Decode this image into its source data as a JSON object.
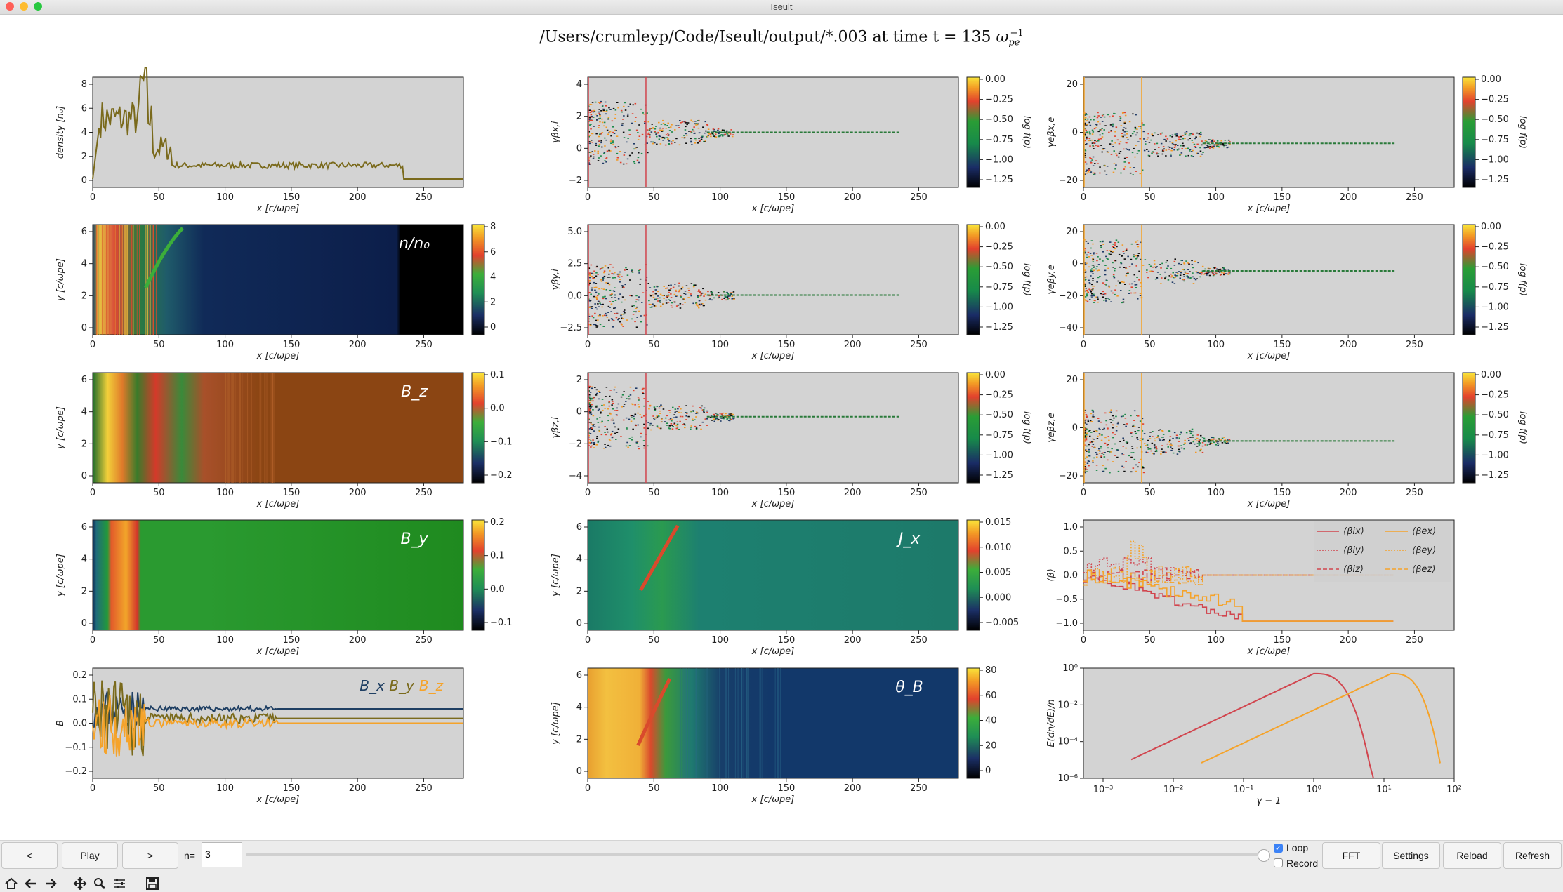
{
  "window": {
    "title": "Iseult"
  },
  "figure_title": {
    "path": "/Users/crumleyp/Code/Iseult/output/*.003 at time t = 135 ",
    "omega": "ω",
    "omega_sub": "pe",
    "omega_sup": "−1"
  },
  "colors": {
    "panel_bg": "#d3d3d3",
    "density_line": "#7a6a1c",
    "ion": "#d1454e",
    "electron": "#f5a32a",
    "bx": "#1f3f63",
    "by": "#7a6a1c",
    "bz": "#f5a32a",
    "brown": "#8b4513",
    "green": "#1f8a1f"
  },
  "axes": {
    "x_label": "x [c/ωpe]",
    "y_label": "y [c/ωpe]",
    "x_ticks": [
      "0",
      "50",
      "100",
      "150",
      "200",
      "250"
    ],
    "y_ticks_2d": [
      "0",
      "2",
      "4",
      "6"
    ]
  },
  "panels": {
    "density": {
      "ylabel": "density [n₀]",
      "yticks": [
        "0",
        "2",
        "4",
        "6",
        "8"
      ]
    },
    "n_map": {
      "label": "n/n₀",
      "cticks": [
        "8",
        "6",
        "4",
        "2",
        "0"
      ]
    },
    "bz_map": {
      "label": "B_z",
      "cticks": [
        "0.1",
        "0.0",
        "−0.1",
        "−0.2"
      ]
    },
    "by_map": {
      "label": "B_y",
      "cticks": [
        "0.2",
        "0.1",
        "0.0",
        "−0.1"
      ]
    },
    "b_lines": {
      "ylabel": "B",
      "yticks": [
        "0.2",
        "0.1",
        "0.0",
        "−0.1",
        "−0.2"
      ],
      "legend": [
        "B_x",
        "B_y",
        "B_z"
      ]
    },
    "px_ion": {
      "ylabel": "γβx,i",
      "yticks": [
        "4",
        "2",
        "0",
        "−2"
      ]
    },
    "py_ion": {
      "ylabel": "γβy,i",
      "yticks": [
        "5.0",
        "2.5",
        "0.0",
        "−2.5"
      ]
    },
    "pz_ion": {
      "ylabel": "γβz,i",
      "yticks": [
        "2",
        "0",
        "−2",
        "−4"
      ]
    },
    "jx_map": {
      "label": "J_x",
      "cticks": [
        "0.015",
        "0.010",
        "0.005",
        "0.000",
        "−0.005"
      ]
    },
    "theta_map": {
      "label": "θ_B",
      "cticks": [
        "80",
        "60",
        "40",
        "20",
        "0"
      ]
    },
    "px_e": {
      "ylabel": "γeβx,e",
      "yticks": [
        "20",
        "0",
        "−20"
      ]
    },
    "py_e": {
      "ylabel": "γeβy,e",
      "yticks": [
        "20",
        "0",
        "−20",
        "−40"
      ]
    },
    "pz_e": {
      "ylabel": "γeβz,e",
      "yticks": [
        "20",
        "0",
        "−20"
      ]
    },
    "beta": {
      "ylabel": "⟨β⟩",
      "yticks": [
        "1.0",
        "0.5",
        "0.0",
        "−0.5",
        "−1.0"
      ],
      "legend": [
        "⟨βix⟩",
        "⟨βiy⟩",
        "⟨βiz⟩",
        "⟨βex⟩",
        "⟨βey⟩",
        "⟨βez⟩"
      ]
    },
    "spectrum": {
      "ylabel": "E(dn/dE)/n",
      "xlabel": "γ − 1",
      "yticks": [
        "10⁰",
        "10⁻²",
        "10⁻⁴",
        "10⁻⁶"
      ],
      "xticks": [
        "10⁻³",
        "10⁻²",
        "10⁻¹",
        "10⁰",
        "10¹",
        "10²"
      ]
    },
    "phase_cbar": {
      "label": "log f(p)",
      "cticks": [
        "0.00",
        "−0.25",
        "−0.50",
        "−0.75",
        "−1.00",
        "−1.25"
      ]
    }
  },
  "controls": {
    "prev": "<",
    "play": "Play",
    "next": ">",
    "n_label": "n=",
    "n_value": "3",
    "loop": "Loop",
    "record": "Record",
    "fft": "FFT",
    "settings": "Settings",
    "reload": "Reload",
    "refresh": "Refresh",
    "loop_checked": true,
    "record_checked": false
  },
  "toolbar_icons": [
    "home-icon",
    "back-arrow-icon",
    "forward-arrow-icon",
    "pan-icon",
    "zoom-icon",
    "configure-icon",
    "save-icon"
  ]
}
